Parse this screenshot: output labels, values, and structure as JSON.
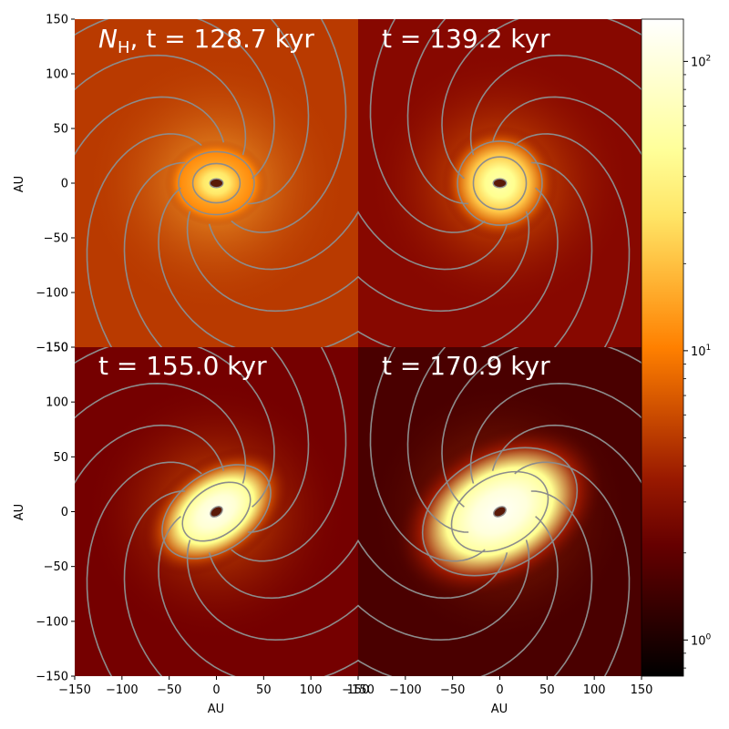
{
  "chart_data": {
    "type": "heatmap",
    "quantity": "N_H",
    "x_unit": "AU",
    "y_unit": "AU",
    "xlim": [
      -150,
      150
    ],
    "ylim": [
      -150,
      150
    ],
    "x_ticks": [
      -150,
      -100,
      -50,
      0,
      50,
      100,
      150
    ],
    "y_ticks": [
      150,
      100,
      50,
      0,
      -50,
      -100,
      -150
    ],
    "x_tick_labels": [
      "−150",
      "−100",
      "−50",
      "0",
      "50",
      "100",
      "150"
    ],
    "y_tick_labels": [
      "150",
      "100",
      "50",
      "0",
      "−50",
      "−100",
      "−150"
    ],
    "xlabel": "AU",
    "ylabel": "AU",
    "colormap": "afmhot",
    "colorbar": {
      "scale": "log",
      "range": [
        0.75,
        140
      ],
      "major_ticks": [
        1,
        10,
        100
      ],
      "major_tick_labels": {
        "base": "10",
        "exponents": [
          "0",
          "1",
          "2"
        ]
      },
      "minor_ticks": [
        0.8,
        0.9,
        2,
        3,
        4,
        5,
        6,
        7,
        8,
        9,
        20,
        30,
        40,
        50,
        60,
        70,
        80,
        90
      ]
    },
    "panels": [
      {
        "title_prefix": "N",
        "title_sub": "H",
        "title_sep": ", ",
        "title_time": "t = 128.7 kyr",
        "time_kyr": 128.7,
        "disk_peak": 40,
        "background": 5,
        "disk_semi_major_au": 25,
        "disk_semi_minor_au": 18,
        "disk_angle_deg": 0,
        "show_xlabel": false,
        "show_ylabel": true
      },
      {
        "title_prefix": "",
        "title_sub": "",
        "title_sep": "",
        "title_time": "t = 139.2 kyr",
        "time_kyr": 139.2,
        "disk_peak": 60,
        "background": 3,
        "disk_semi_major_au": 28,
        "disk_semi_minor_au": 24,
        "disk_angle_deg": 0,
        "show_xlabel": false,
        "show_ylabel": false
      },
      {
        "title_prefix": "",
        "title_sub": "",
        "title_sep": "",
        "title_time": "t = 155.0 kyr",
        "time_kyr": 155.0,
        "disk_peak": 120,
        "background": 2.5,
        "disk_semi_major_au": 40,
        "disk_semi_minor_au": 22,
        "disk_angle_deg": 35,
        "show_xlabel": true,
        "show_ylabel": true
      },
      {
        "title_prefix": "",
        "title_sub": "",
        "title_sep": "",
        "title_time": "t = 170.9 kyr",
        "time_kyr": 170.9,
        "disk_peak": 130,
        "background": 1.6,
        "disk_semi_major_au": 55,
        "disk_semi_minor_au": 32,
        "disk_angle_deg": 30,
        "show_xlabel": true,
        "show_ylabel": false
      }
    ]
  }
}
